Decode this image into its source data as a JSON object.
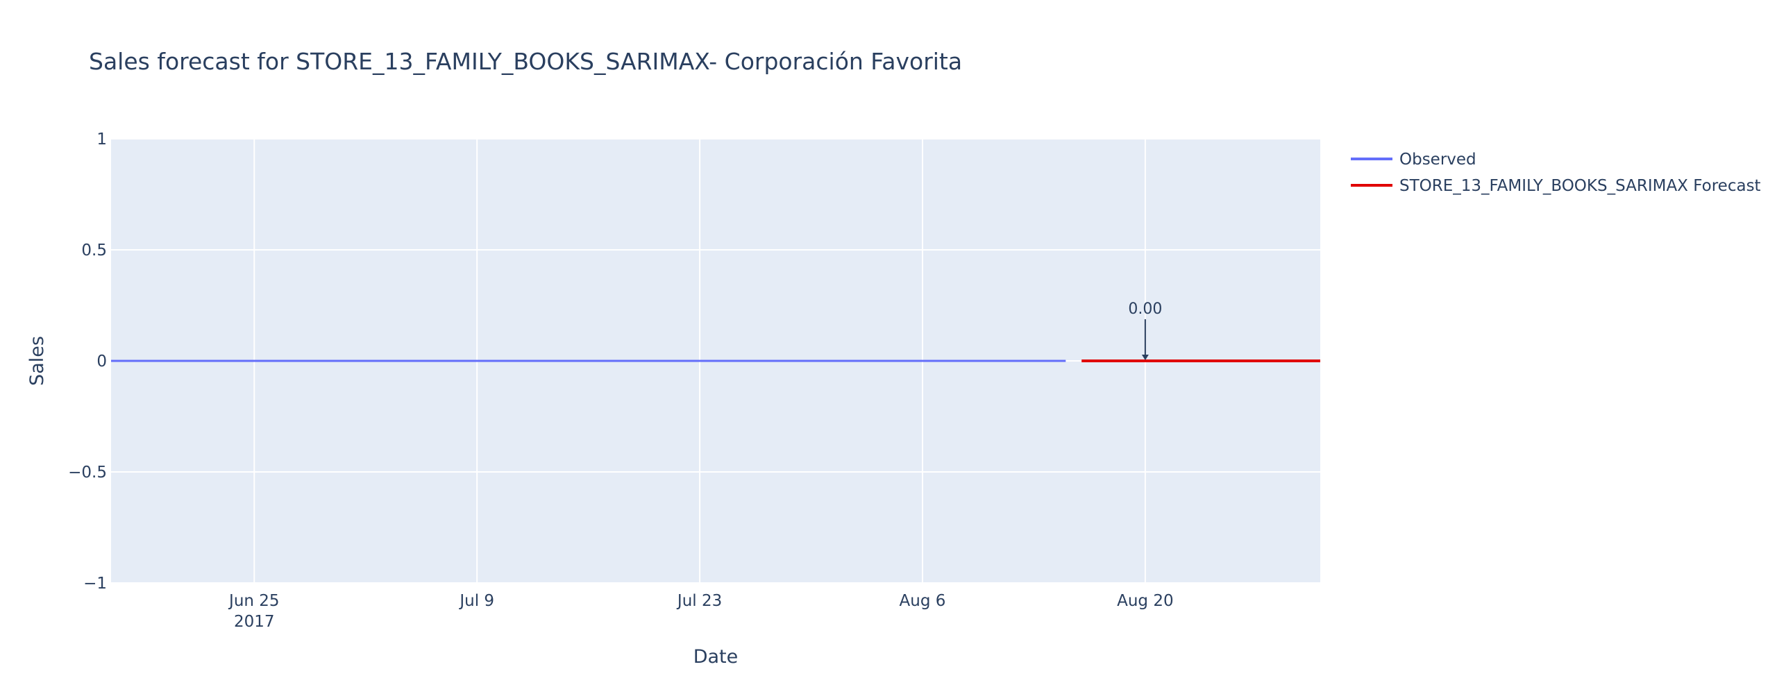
{
  "chart_data": {
    "type": "line",
    "title": "Sales forecast for STORE_13_FAMILY_BOOKS_SARIMAX- Corporación Favorita",
    "xlabel": "Date",
    "ylabel": "Sales",
    "xlim": [
      "2017-06-16",
      "2017-08-31"
    ],
    "ylim": [
      -1,
      1
    ],
    "x_ticks": [
      {
        "date": "2017-06-25",
        "label": "Jun 25",
        "sublabel": "2017"
      },
      {
        "date": "2017-07-09",
        "label": "Jul 9",
        "sublabel": ""
      },
      {
        "date": "2017-07-23",
        "label": "Jul 23",
        "sublabel": ""
      },
      {
        "date": "2017-08-06",
        "label": "Aug 6",
        "sublabel": ""
      },
      {
        "date": "2017-08-20",
        "label": "Aug 20",
        "sublabel": ""
      }
    ],
    "y_ticks": [
      {
        "value": 1,
        "label": "1"
      },
      {
        "value": 0.5,
        "label": "0.5"
      },
      {
        "value": 0,
        "label": "0"
      },
      {
        "value": -0.5,
        "label": "−0.5"
      },
      {
        "value": -1,
        "label": "−1"
      }
    ],
    "grid": true,
    "legend_position": "right",
    "series": [
      {
        "name": "Observed",
        "color": "#636efa",
        "x": [
          "2017-06-16",
          "2017-08-15"
        ],
        "y": [
          0,
          0
        ]
      },
      {
        "name": "STORE_13_FAMILY_BOOKS_SARIMAX Forecast",
        "color": "#e00000",
        "x": [
          "2017-08-16",
          "2017-08-31"
        ],
        "y": [
          0,
          0
        ]
      }
    ],
    "annotations": [
      {
        "text": "0.00",
        "x": "2017-08-20",
        "y": 0
      }
    ]
  }
}
